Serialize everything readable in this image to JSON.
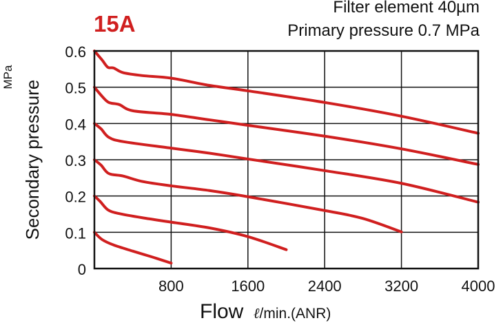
{
  "series_label": "15A",
  "conditions": {
    "filter": "Filter element 40µm",
    "primary_pressure": "Primary pressure 0.7 MPa"
  },
  "colors": {
    "curve": "#d01f1f",
    "title": "#d01f1f",
    "grid": "#111111"
  },
  "chart_data": {
    "type": "line",
    "title": "15A",
    "xlabel": "Flow",
    "xunit_symbol": "ℓ",
    "xunit_rest": "/min.(ANR)",
    "ylabel": "Secondary pressure",
    "yunit": "MPa",
    "xlim": [
      0,
      4000
    ],
    "ylim": [
      0,
      0.6
    ],
    "x_ticks": [
      800,
      1600,
      2400,
      3200,
      4000
    ],
    "y_ticks": [
      0,
      0.1,
      0.2,
      0.3,
      0.4,
      0.5,
      0.6
    ],
    "y_tick_labels": [
      "0",
      "0.1",
      "0.2",
      "0.3",
      "0.4",
      "0.5",
      "0.6"
    ],
    "grid": true,
    "series": [
      {
        "points": [
          [
            0,
            0.6
          ],
          [
            80,
            0.575
          ],
          [
            140,
            0.555
          ],
          [
            200,
            0.553
          ],
          [
            300,
            0.54
          ],
          [
            500,
            0.532
          ],
          [
            800,
            0.525
          ],
          [
            1200,
            0.505
          ],
          [
            1600,
            0.49
          ],
          [
            2400,
            0.458
          ],
          [
            3200,
            0.42
          ],
          [
            4000,
            0.373
          ]
        ]
      },
      {
        "points": [
          [
            0,
            0.5
          ],
          [
            80,
            0.475
          ],
          [
            150,
            0.458
          ],
          [
            260,
            0.452
          ],
          [
            400,
            0.435
          ],
          [
            800,
            0.425
          ],
          [
            1200,
            0.41
          ],
          [
            1600,
            0.395
          ],
          [
            2400,
            0.365
          ],
          [
            3200,
            0.33
          ],
          [
            4000,
            0.287
          ]
        ]
      },
      {
        "points": [
          [
            0,
            0.4
          ],
          [
            70,
            0.385
          ],
          [
            150,
            0.362
          ],
          [
            300,
            0.35
          ],
          [
            800,
            0.332
          ],
          [
            1200,
            0.318
          ],
          [
            1600,
            0.302
          ],
          [
            2400,
            0.27
          ],
          [
            3200,
            0.235
          ],
          [
            4000,
            0.183
          ]
        ]
      },
      {
        "points": [
          [
            0,
            0.3
          ],
          [
            70,
            0.285
          ],
          [
            150,
            0.262
          ],
          [
            300,
            0.255
          ],
          [
            500,
            0.24
          ],
          [
            800,
            0.228
          ],
          [
            1200,
            0.215
          ],
          [
            1600,
            0.198
          ],
          [
            2400,
            0.16
          ],
          [
            2800,
            0.138
          ],
          [
            3200,
            0.101
          ]
        ]
      },
      {
        "points": [
          [
            0,
            0.2
          ],
          [
            60,
            0.185
          ],
          [
            140,
            0.162
          ],
          [
            250,
            0.152
          ],
          [
            500,
            0.14
          ],
          [
            800,
            0.128
          ],
          [
            1200,
            0.112
          ],
          [
            1600,
            0.088
          ],
          [
            2000,
            0.052
          ]
        ]
      },
      {
        "points": [
          [
            0,
            0.1
          ],
          [
            80,
            0.08
          ],
          [
            200,
            0.065
          ],
          [
            400,
            0.048
          ],
          [
            600,
            0.032
          ],
          [
            800,
            0.015
          ]
        ]
      }
    ]
  }
}
